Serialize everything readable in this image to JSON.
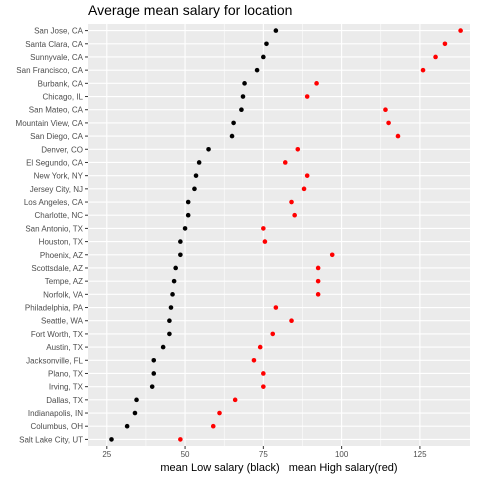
{
  "chart_data": {
    "type": "scatter",
    "title": "Average mean salary for location",
    "xlabel": "mean Low salary (black)   mean High salary(red)",
    "ylabel": "",
    "xlim": [
      19,
      141
    ],
    "xticks": [
      25,
      50,
      75,
      100,
      125
    ],
    "grid": true,
    "background": "#EBEBEB",
    "gridColor": "#FFFFFF",
    "low_color": "#000000",
    "high_color": "#FF0000",
    "categories": [
      "San Jose, CA",
      "Santa Clara, CA",
      "Sunnyvale, CA",
      "San Francisco, CA",
      "Burbank, CA",
      "Chicago, IL",
      "San Mateo, CA",
      "Mountain View, CA",
      "San Diego, CA",
      "Denver, CO",
      "El Segundo, CA",
      "New York, NY",
      "Jersey City, NJ",
      "Los Angeles, CA",
      "Charlotte, NC",
      "San Antonio, TX",
      "Houston, TX",
      "Phoenix, AZ",
      "Scottsdale, AZ",
      "Tempe, AZ",
      "Norfolk, VA",
      "Philadelphia, PA",
      "Seattle, WA",
      "Fort Worth, TX",
      "Austin, TX",
      "Jacksonville, FL",
      "Plano, TX",
      "Irving, TX",
      "Dallas, TX",
      "Indianapolis, IN",
      "Columbus, OH",
      "Salt Lake City, UT"
    ],
    "series": [
      {
        "name": "mean Low salary",
        "color": "#000000",
        "values": [
          79,
          76,
          75,
          73,
          69,
          68.5,
          68,
          65.5,
          65,
          57.5,
          54.5,
          53.5,
          53,
          51,
          51,
          50,
          48.5,
          48.5,
          47,
          46.5,
          46,
          45.5,
          45,
          45,
          43,
          40,
          40,
          39.5,
          34.5,
          34,
          31.5,
          26.5
        ]
      },
      {
        "name": "mean High salary",
        "color": "#FF0000",
        "values": [
          138,
          133,
          130,
          126,
          92,
          89,
          114,
          115,
          118,
          86,
          82,
          89,
          88,
          84,
          85,
          75,
          75.5,
          97,
          92.5,
          92.5,
          92.5,
          79,
          84,
          78,
          74,
          72,
          75,
          75,
          66,
          61,
          59,
          48.5
        ]
      }
    ]
  }
}
